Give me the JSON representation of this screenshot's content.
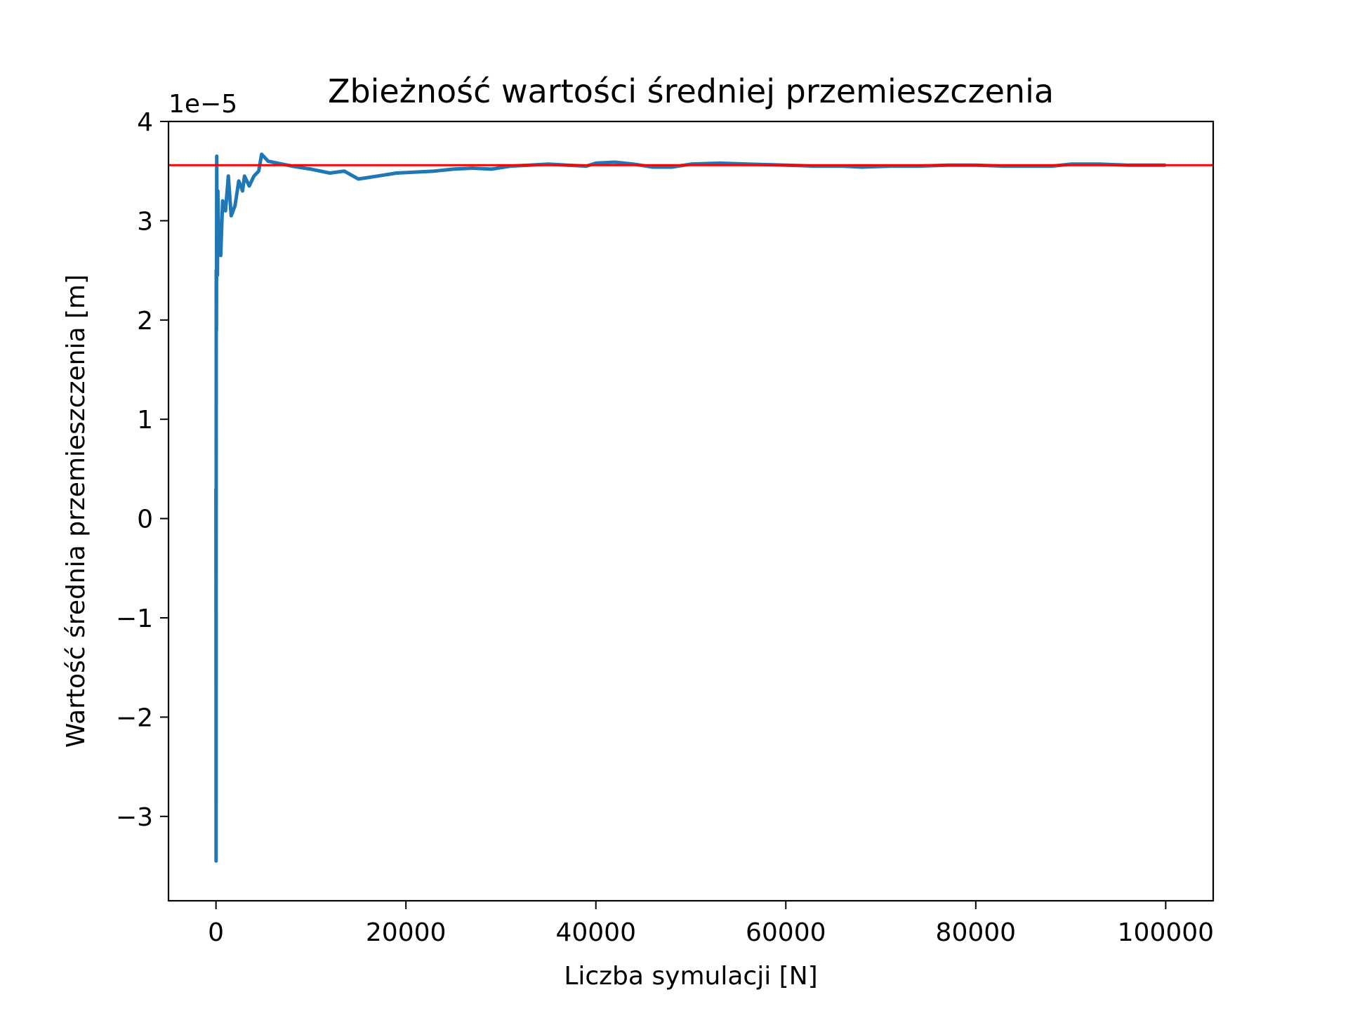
{
  "chart_data": {
    "type": "line",
    "title": "Zbieżność wartości średniej przemieszczenia",
    "xlabel": "Liczba symulacji [N]",
    "ylabel": "Wartość średnia przemieszczenia [m]",
    "y_offset_label": "1e−5",
    "xlim": [
      -5000,
      105000
    ],
    "ylim": [
      -3.85,
      4.0
    ],
    "y_scale_note": "values in units of 1e-5 m",
    "x_ticks": [
      0,
      20000,
      40000,
      60000,
      80000,
      100000
    ],
    "x_tick_labels": [
      "0",
      "20000",
      "40000",
      "60000",
      "80000",
      "100000"
    ],
    "y_ticks": [
      -3,
      -2,
      -1,
      0,
      1,
      2,
      3,
      4
    ],
    "y_tick_labels": [
      "−3",
      "−2",
      "−1",
      "0",
      "1",
      "2",
      "3",
      "4"
    ],
    "grid": false,
    "colors": {
      "series": "#1f77b4",
      "reference": "#ff0000"
    },
    "series": [
      {
        "x": [
          1,
          10,
          30,
          50,
          80,
          100,
          150,
          200,
          300,
          400,
          500,
          700,
          1000,
          1300,
          1600,
          2000,
          2400,
          2800,
          3000,
          3500,
          4000,
          4500,
          4800,
          5500,
          6500,
          8000,
          10000,
          12000,
          13500,
          15000,
          17000,
          19000,
          21000,
          23000,
          25000,
          27000,
          29000,
          31000,
          33000,
          35000,
          37000,
          39000,
          40000,
          42000,
          44000,
          46000,
          48000,
          50000,
          53000,
          56000,
          60000,
          63000,
          66000,
          68000,
          71000,
          74000,
          77000,
          80000,
          83000,
          86000,
          88000,
          90000,
          93000,
          96000,
          100000
        ],
        "y": [
          0.3,
          -3.45,
          2.5,
          1.9,
          3.65,
          3.1,
          2.45,
          3.3,
          2.7,
          2.9,
          2.65,
          3.2,
          3.1,
          3.45,
          3.05,
          3.15,
          3.4,
          3.3,
          3.45,
          3.35,
          3.45,
          3.5,
          3.67,
          3.6,
          3.58,
          3.55,
          3.52,
          3.48,
          3.5,
          3.42,
          3.45,
          3.48,
          3.49,
          3.5,
          3.52,
          3.53,
          3.52,
          3.55,
          3.56,
          3.57,
          3.56,
          3.55,
          3.58,
          3.59,
          3.57,
          3.54,
          3.54,
          3.57,
          3.58,
          3.57,
          3.56,
          3.55,
          3.55,
          3.54,
          3.55,
          3.55,
          3.56,
          3.56,
          3.55,
          3.55,
          3.55,
          3.57,
          3.57,
          3.56,
          3.56
        ]
      }
    ],
    "reference_line_y": 3.56
  }
}
